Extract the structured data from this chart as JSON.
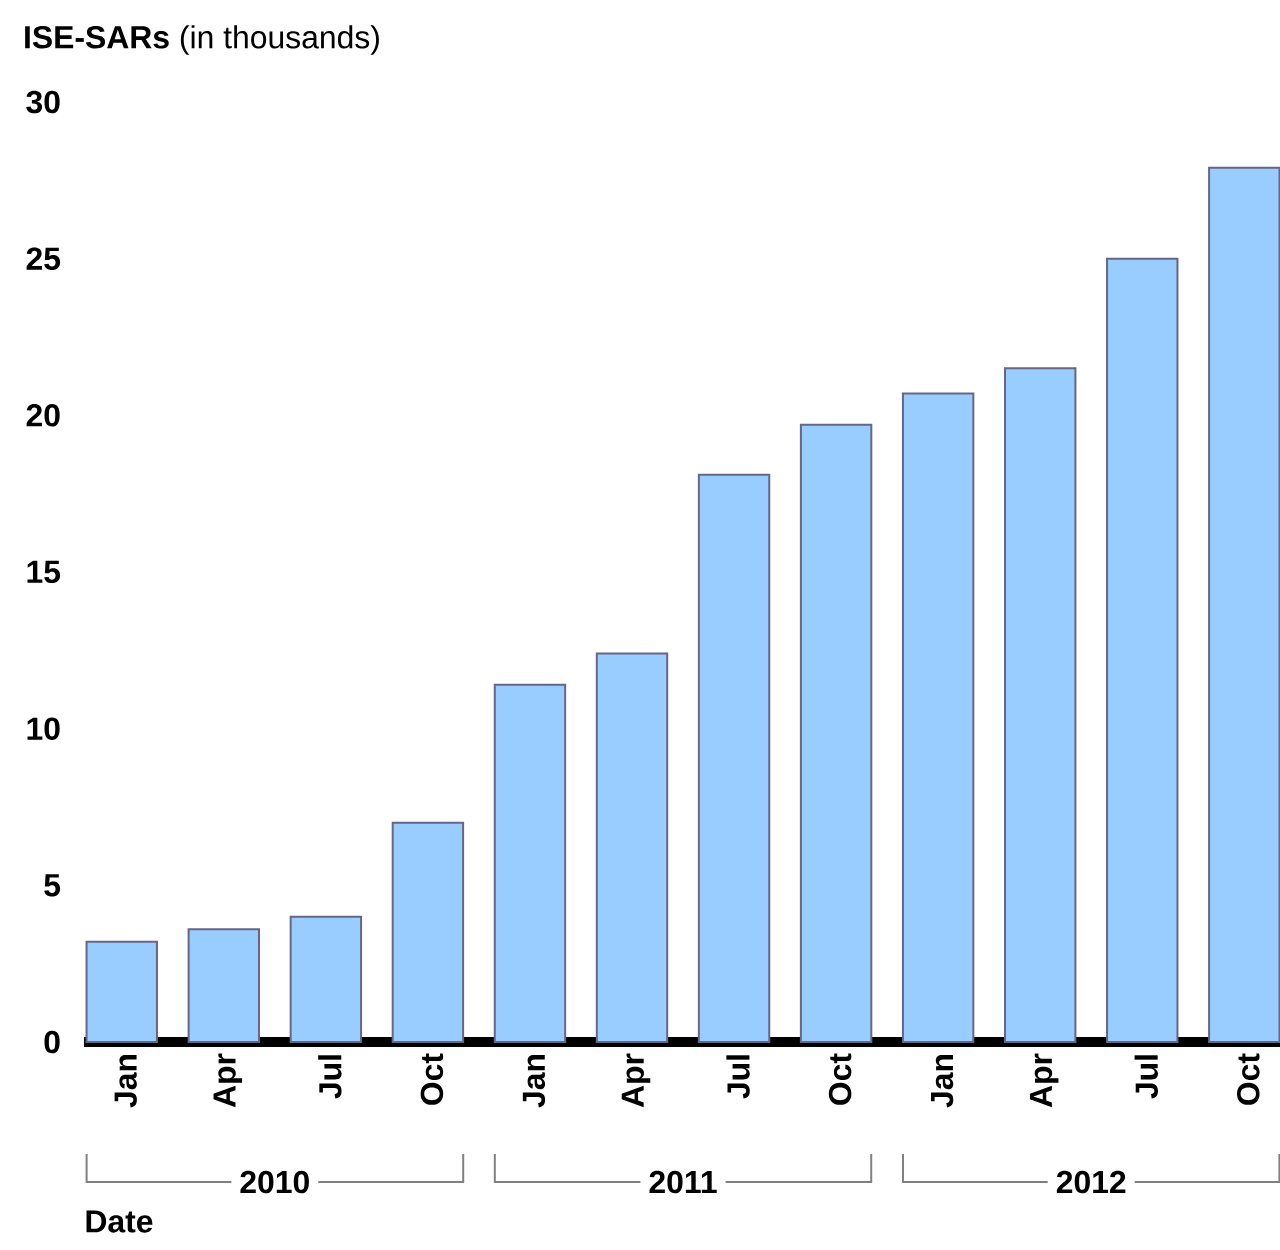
{
  "chart_data": {
    "type": "bar",
    "ylabel": "**ISE-SARs** (in thousands)",
    "xlabel": "Date",
    "categories": [
      "Jan",
      "Apr",
      "Jul",
      "Oct",
      "Jan",
      "Apr",
      "Jul",
      "Oct",
      "Jan",
      "Apr",
      "Jul",
      "Oct"
    ],
    "values": [
      3.2,
      3.6,
      4.0,
      7.0,
      11.4,
      12.4,
      18.1,
      19.7,
      20.7,
      21.5,
      25.0,
      27.9
    ],
    "color": "#99ccff",
    "ylim": [
      0,
      30
    ],
    "yticks": [
      0,
      5,
      10,
      15,
      20,
      25,
      30
    ],
    "annotations": [
      "2010",
      "2011",
      "2012"
    ]
  }
}
